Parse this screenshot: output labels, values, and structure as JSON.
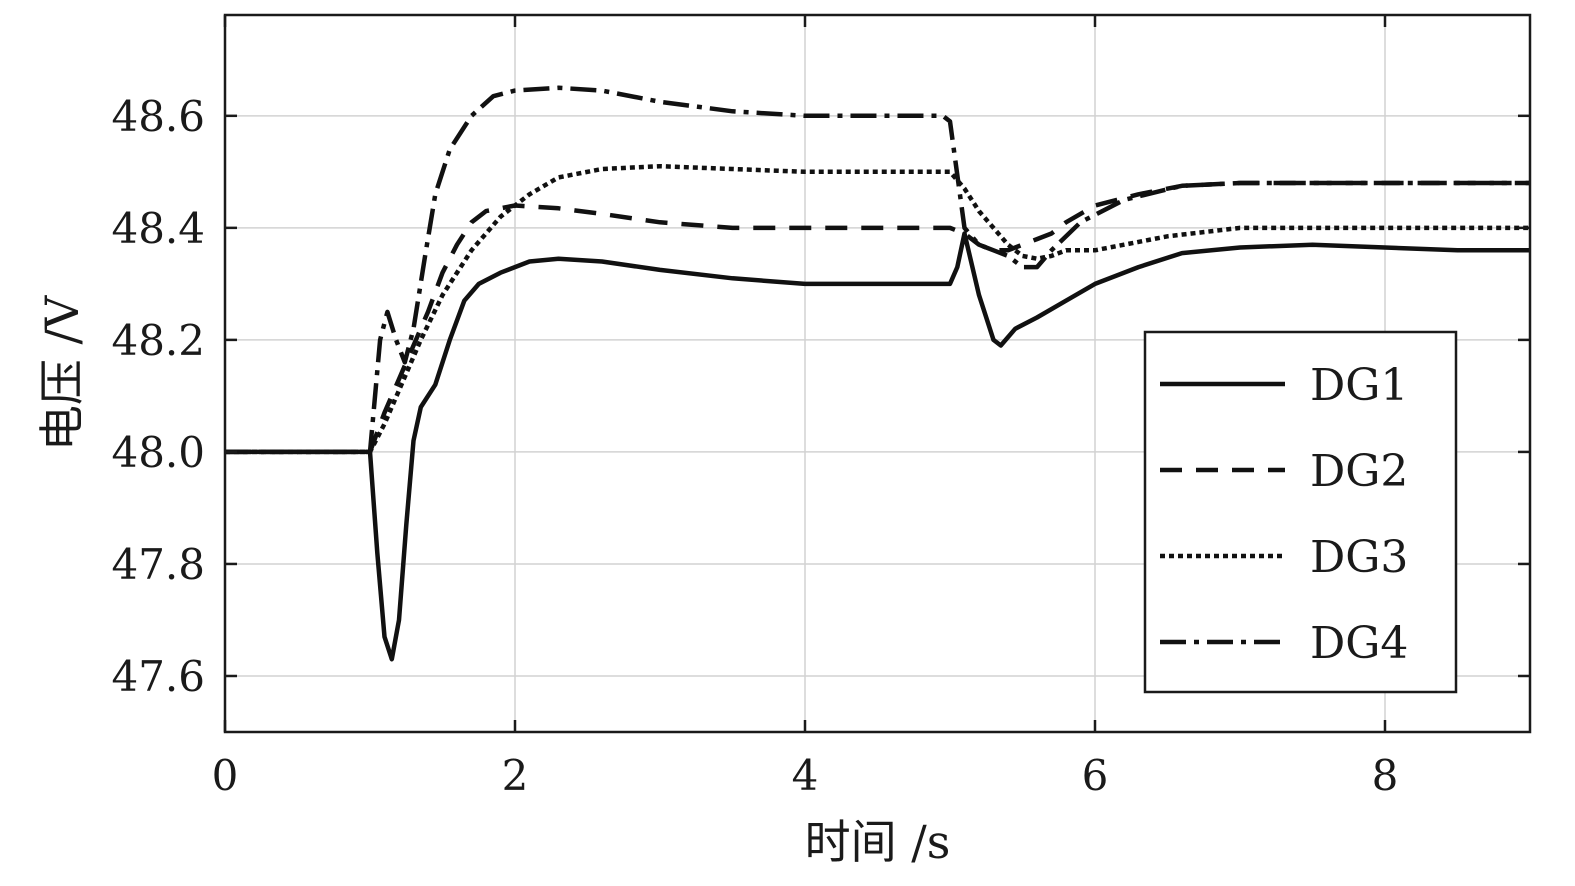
{
  "chart_data": {
    "type": "line",
    "title": "",
    "xlabel": "时间 /s",
    "ylabel": "电压 /V",
    "xlim": [
      0,
      9
    ],
    "ylim": [
      47.5,
      48.78
    ],
    "xticks": [
      0,
      2,
      4,
      6,
      8
    ],
    "xtick_labels": [
      "0",
      "2",
      "4",
      "6",
      "8"
    ],
    "yticks": [
      47.6,
      47.8,
      48.0,
      48.2,
      48.4,
      48.6
    ],
    "ytick_labels": [
      "47.6",
      "47.8",
      "48.0",
      "48.2",
      "48.4",
      "48.6"
    ],
    "grid": true,
    "legend": {
      "position": "lower-right",
      "entries": [
        "DG1",
        "DG2",
        "DG3",
        "DG4"
      ]
    },
    "series": [
      {
        "name": "DG1",
        "style": "solid",
        "x": [
          0,
          1.0,
          1.05,
          1.1,
          1.15,
          1.2,
          1.25,
          1.3,
          1.35,
          1.45,
          1.55,
          1.65,
          1.75,
          1.9,
          2.1,
          2.3,
          2.6,
          3.0,
          3.5,
          4.0,
          4.5,
          5.0,
          5.05,
          5.1,
          5.2,
          5.3,
          5.35,
          5.45,
          5.6,
          5.8,
          6.0,
          6.3,
          6.6,
          7.0,
          7.5,
          8.0,
          8.5,
          9.0
        ],
        "y": [
          48.0,
          48.0,
          47.82,
          47.67,
          47.63,
          47.7,
          47.87,
          48.02,
          48.08,
          48.12,
          48.2,
          48.27,
          48.3,
          48.32,
          48.34,
          48.345,
          48.34,
          48.325,
          48.31,
          48.3,
          48.3,
          48.3,
          48.33,
          48.39,
          48.28,
          48.2,
          48.19,
          48.22,
          48.24,
          48.27,
          48.3,
          48.33,
          48.355,
          48.365,
          48.37,
          48.365,
          48.36,
          48.36
        ]
      },
      {
        "name": "DG2",
        "style": "dashed",
        "x": [
          0,
          1.0,
          1.1,
          1.2,
          1.3,
          1.4,
          1.5,
          1.6,
          1.7,
          1.8,
          2.0,
          2.3,
          2.6,
          3.0,
          3.5,
          4.0,
          4.5,
          5.0,
          5.1,
          5.2,
          5.3,
          5.4,
          5.5,
          5.6,
          5.7,
          5.8,
          6.0,
          6.3,
          6.6,
          7.0,
          7.5,
          8.0,
          8.5,
          9.0
        ],
        "y": [
          48.0,
          48.0,
          48.07,
          48.13,
          48.19,
          48.25,
          48.32,
          48.37,
          48.41,
          48.43,
          48.44,
          48.435,
          48.425,
          48.41,
          48.4,
          48.4,
          48.4,
          48.4,
          48.39,
          48.37,
          48.36,
          48.36,
          48.37,
          48.38,
          48.39,
          48.41,
          48.44,
          48.46,
          48.475,
          48.48,
          48.48,
          48.48,
          48.48,
          48.48
        ]
      },
      {
        "name": "DG3",
        "style": "dotted",
        "x": [
          0,
          1.0,
          1.1,
          1.2,
          1.35,
          1.5,
          1.7,
          1.9,
          2.1,
          2.3,
          2.6,
          3.0,
          3.5,
          4.0,
          4.5,
          5.0,
          5.1,
          5.2,
          5.3,
          5.4,
          5.5,
          5.6,
          5.7,
          5.8,
          6.0,
          6.2,
          6.5,
          7.0,
          7.5,
          8.0,
          8.5,
          9.0
        ],
        "y": [
          48.0,
          48.0,
          48.05,
          48.11,
          48.2,
          48.28,
          48.36,
          48.42,
          48.46,
          48.49,
          48.505,
          48.51,
          48.505,
          48.5,
          48.5,
          48.5,
          48.47,
          48.43,
          48.4,
          48.37,
          48.35,
          48.345,
          48.35,
          48.36,
          48.36,
          48.37,
          48.385,
          48.4,
          48.4,
          48.4,
          48.4,
          48.4
        ]
      },
      {
        "name": "DG4",
        "style": "dashdot",
        "x": [
          0,
          1.0,
          1.07,
          1.12,
          1.18,
          1.24,
          1.3,
          1.38,
          1.45,
          1.55,
          1.7,
          1.85,
          2.0,
          2.3,
          2.6,
          3.0,
          3.5,
          4.0,
          4.5,
          4.95,
          5.0,
          5.1,
          5.2,
          5.3,
          5.4,
          5.5,
          5.6,
          5.7,
          5.9,
          6.2,
          6.6,
          7.0,
          7.5,
          8.0,
          8.5,
          9.0
        ],
        "y": [
          48.0,
          48.0,
          48.2,
          48.25,
          48.2,
          48.16,
          48.22,
          48.35,
          48.46,
          48.54,
          48.6,
          48.635,
          48.645,
          48.65,
          48.645,
          48.625,
          48.608,
          48.6,
          48.6,
          48.6,
          48.59,
          48.4,
          48.37,
          48.36,
          48.35,
          48.33,
          48.33,
          48.36,
          48.41,
          48.45,
          48.475,
          48.48,
          48.48,
          48.48,
          48.48,
          48.48
        ]
      }
    ]
  }
}
